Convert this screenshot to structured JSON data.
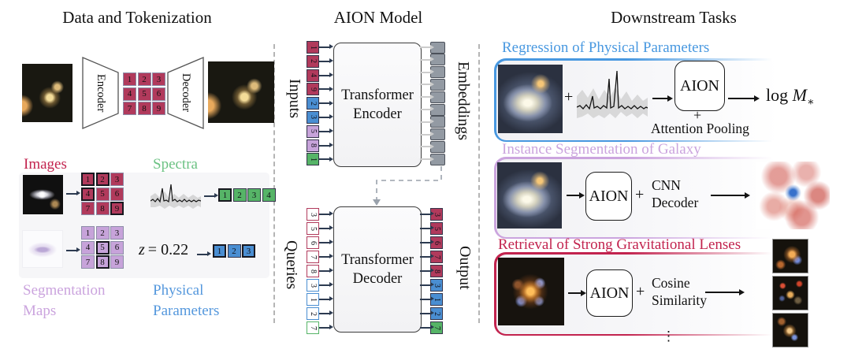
{
  "colors": {
    "red": "#b13a5c",
    "blue": "#4a8ed2",
    "purple": "#c7a3da",
    "green": "#56b467",
    "gray-fill": "#939aa3",
    "navy": "#2c3a50",
    "arrow-light": "#cccccc",
    "header-blue": "#4898e0",
    "header-purple": "#cba4de",
    "header-crimson": "#c2234e",
    "label-red": "#c2234e",
    "label-green": "#6cc283",
    "label-purple": "#cba4de",
    "label-blue": "#5598dd"
  },
  "tokenization": {
    "title": "Data and Tokenization",
    "encoder": "Encoder",
    "decoder": "Decoder",
    "codebook_grid": [
      {
        "v": "1"
      },
      {
        "v": "2"
      },
      {
        "v": "3"
      },
      {
        "v": "4"
      },
      {
        "v": "5"
      },
      {
        "v": "6"
      },
      {
        "v": "7"
      },
      {
        "v": "8"
      },
      {
        "v": "9"
      }
    ],
    "images_label": "Images",
    "spectra_label": "Spectra",
    "segmentation_label_1": "Segmentation",
    "segmentation_label_2": "Maps",
    "physical_label_1": "Physical",
    "physical_label_2": "Parameters",
    "image_grid": [
      {
        "v": "1",
        "b": true
      },
      {
        "v": "2",
        "b": true
      },
      {
        "v": "3"
      },
      {
        "v": "4",
        "b": true
      },
      {
        "v": "5"
      },
      {
        "v": "6"
      },
      {
        "v": "7"
      },
      {
        "v": "8"
      },
      {
        "v": "9",
        "b": true
      }
    ],
    "seg_grid": [
      {
        "v": "1"
      },
      {
        "v": "2"
      },
      {
        "v": "3"
      },
      {
        "v": "4"
      },
      {
        "v": "5",
        "b": true
      },
      {
        "v": "6"
      },
      {
        "v": "7"
      },
      {
        "v": "8",
        "b": true
      },
      {
        "v": "9"
      }
    ],
    "spectra_tokens": [
      {
        "v": "1",
        "c": "green",
        "b": true
      },
      {
        "v": "2",
        "c": "green"
      },
      {
        "v": "3",
        "c": "green"
      },
      {
        "v": "4",
        "c": "green"
      }
    ],
    "physical_tokens": [
      {
        "v": "1",
        "c": "blue",
        "b": true
      },
      {
        "v": "2",
        "c": "blue"
      },
      {
        "v": "3",
        "c": "blue",
        "b": true
      }
    ],
    "redshift_var": "z",
    "redshift_val": "= 0.22"
  },
  "model": {
    "title": "AION Model",
    "inputs_label": "Inputs",
    "embeddings_label": "Embeddings",
    "queries_label": "Queries",
    "output_label": "Output",
    "encoder_line1": "Transformer",
    "encoder_line2": "Encoder",
    "decoder_line1": "Transformer",
    "decoder_line2": "Decoder",
    "embedding_count": 10,
    "input_tokens": [
      {
        "v": "1",
        "c": "red"
      },
      {
        "v": "2",
        "c": "red"
      },
      {
        "v": "4",
        "c": "red"
      },
      {
        "v": "9",
        "c": "red"
      },
      {
        "v": "2",
        "c": "blue"
      },
      {
        "v": "3",
        "c": "blue"
      },
      {
        "v": "5",
        "c": "purple"
      },
      {
        "v": "8",
        "c": "purple"
      },
      {
        "v": "1",
        "c": "green"
      }
    ],
    "query_tokens": [
      {
        "v": "3",
        "c": "red"
      },
      {
        "v": "5",
        "c": "red"
      },
      {
        "v": "6",
        "c": "red"
      },
      {
        "v": "7",
        "c": "red"
      },
      {
        "v": "8",
        "c": "red"
      },
      {
        "v": "3",
        "c": "blue"
      },
      {
        "v": "1",
        "c": "blue"
      },
      {
        "v": "2",
        "c": "blue"
      },
      {
        "v": "7",
        "c": "green"
      }
    ],
    "output_tokens": [
      {
        "v": "3",
        "c": "red"
      },
      {
        "v": "5",
        "c": "red"
      },
      {
        "v": "6",
        "c": "red"
      },
      {
        "v": "7",
        "c": "red"
      },
      {
        "v": "8",
        "c": "red"
      },
      {
        "v": "3",
        "c": "blue"
      },
      {
        "v": "1",
        "c": "blue"
      },
      {
        "v": "2",
        "c": "blue"
      },
      {
        "v": "7",
        "c": "green"
      }
    ]
  },
  "downstream": {
    "title": "Downstream Tasks",
    "tasks": [
      {
        "header": "Regression of Physical Parameters",
        "aion": "AION",
        "plus1": "+",
        "plus2": "+",
        "pooling": "Attention Pooling",
        "result_log": "log",
        "result_var": "M",
        "result_sub": "∗"
      },
      {
        "header": "Instance Segmentation of Galaxy",
        "aion": "AION",
        "plus": "+",
        "line1": "CNN",
        "line2": "Decoder"
      },
      {
        "header": "Retrieval of Strong Gravitational Lenses",
        "aion": "AION",
        "plus": "+",
        "line1": "Cosine",
        "line2": "Similarity"
      }
    ],
    "ellipsis": "⋮"
  }
}
